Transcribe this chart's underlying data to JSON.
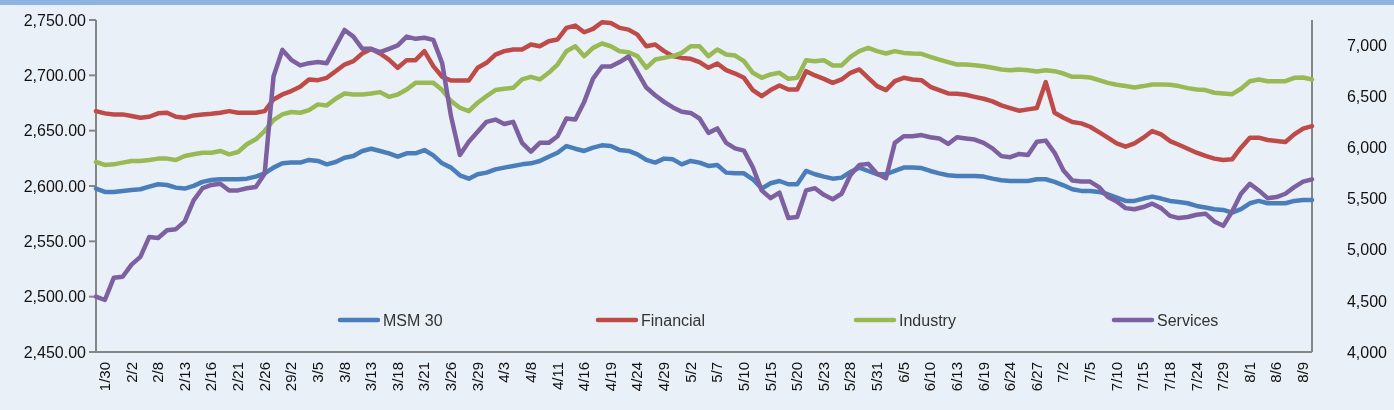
{
  "chart_data": {
    "type": "line",
    "categories": [
      null,
      "1/30",
      null,
      null,
      "2/2",
      null,
      null,
      "2/8",
      null,
      null,
      "2/13",
      null,
      null,
      "2/16",
      null,
      null,
      "2/21",
      null,
      null,
      "2/26",
      null,
      null,
      "29/2",
      null,
      null,
      "3/5",
      null,
      null,
      "3/8",
      null,
      null,
      "3/13",
      null,
      null,
      "3/18",
      null,
      null,
      "3/21",
      null,
      null,
      "3/26",
      null,
      null,
      "3/29",
      null,
      null,
      "4/3",
      null,
      null,
      "4/8",
      null,
      null,
      "4/11",
      null,
      null,
      "4/16",
      null,
      null,
      "4/19",
      null,
      null,
      "4/24",
      null,
      null,
      "4/29",
      null,
      null,
      "5/2",
      null,
      null,
      "5/7",
      null,
      null,
      "5/10",
      null,
      null,
      "5/15",
      null,
      null,
      "5/20",
      null,
      null,
      "5/23",
      null,
      null,
      "5/28",
      null,
      null,
      "5/31",
      null,
      null,
      "6/5",
      null,
      null,
      "6/10",
      null,
      null,
      "6/13",
      null,
      null,
      "6/19",
      null,
      null,
      "6/24",
      null,
      null,
      "6/27",
      null,
      null,
      "7/2",
      null,
      null,
      "7/5",
      null,
      null,
      "7/10",
      null,
      null,
      "7/15",
      null,
      null,
      "7/18",
      null,
      null,
      "7/24",
      null,
      null,
      "7/29",
      null,
      null,
      "8/1",
      null,
      null,
      "8/6",
      null,
      null,
      "8/9",
      null
    ],
    "series": [
      {
        "name": "MSM 30",
        "color": "#4a7ebb",
        "axis": "y2",
        "values": [
          5600,
          5567,
          5567,
          5577,
          5586,
          5593,
          5619,
          5642,
          5635,
          5609,
          5600,
          5626,
          5665,
          5684,
          5691,
          5691,
          5691,
          5697,
          5717,
          5749,
          5805,
          5847,
          5854,
          5854,
          5880,
          5870,
          5837,
          5860,
          5902,
          5919,
          5968,
          5990,
          5968,
          5945,
          5912,
          5945,
          5945,
          5977,
          5925,
          5847,
          5805,
          5730,
          5697,
          5740,
          5756,
          5788,
          5805,
          5821,
          5837,
          5847,
          5870,
          5912,
          5951,
          6016,
          5990,
          5968,
          6000,
          6023,
          6016,
          5977,
          5968,
          5935,
          5880,
          5854,
          5893,
          5886,
          5837,
          5870,
          5854,
          5821,
          5831,
          5756,
          5749,
          5749,
          5691,
          5600,
          5652,
          5674,
          5642,
          5642,
          5772,
          5740,
          5717,
          5697,
          5707,
          5762,
          5805,
          5772,
          5740,
          5740,
          5772,
          5805,
          5805,
          5801,
          5772,
          5749,
          5730,
          5723,
          5723,
          5723,
          5717,
          5697,
          5681,
          5674,
          5674,
          5674,
          5691,
          5691,
          5665,
          5632,
          5593,
          5577,
          5577,
          5567,
          5544,
          5512,
          5479,
          5479,
          5502,
          5521,
          5502,
          5479,
          5469,
          5456,
          5430,
          5414,
          5398,
          5391,
          5365,
          5398,
          5456,
          5479,
          5456,
          5456,
          5456,
          5479,
          5489,
          5489
        ]
      },
      {
        "name": "Financial",
        "color": "#be4b48",
        "axis": "y2",
        "values": [
          6358,
          6336,
          6326,
          6326,
          6310,
          6293,
          6303,
          6336,
          6342,
          6303,
          6293,
          6316,
          6326,
          6332,
          6342,
          6358,
          6342,
          6342,
          6342,
          6358,
          6472,
          6521,
          6554,
          6596,
          6668,
          6661,
          6684,
          6749,
          6814,
          6847,
          6922,
          6967,
          6922,
          6863,
          6782,
          6857,
          6857,
          6945,
          6798,
          6694,
          6658,
          6658,
          6658,
          6782,
          6831,
          6912,
          6945,
          6961,
          6961,
          7010,
          6993,
          7042,
          7059,
          7173,
          7195,
          7130,
          7163,
          7228,
          7221,
          7173,
          7156,
          7107,
          6993,
          7010,
          6945,
          6896,
          6879,
          6870,
          6837,
          6782,
          6824,
          6759,
          6726,
          6684,
          6564,
          6505,
          6564,
          6609,
          6570,
          6570,
          6749,
          6707,
          6674,
          6635,
          6668,
          6733,
          6766,
          6684,
          6603,
          6564,
          6652,
          6684,
          6668,
          6661,
          6596,
          6564,
          6531,
          6528,
          6518,
          6498,
          6479,
          6453,
          6414,
          6388,
          6362,
          6375,
          6388,
          6642,
          6342,
          6293,
          6251,
          6238,
          6205,
          6153,
          6098,
          6042,
          6010,
          6042,
          6098,
          6163,
          6130,
          6065,
          6029,
          5990,
          5951,
          5919,
          5893,
          5880,
          5886,
          6000,
          6098,
          6098,
          6075,
          6065,
          6055,
          6130,
          6186,
          6212
        ]
      },
      {
        "name": "Industry",
        "color": "#98b954",
        "axis": "y2",
        "values": [
          5860,
          5831,
          5837,
          5854,
          5870,
          5870,
          5880,
          5893,
          5893,
          5880,
          5919,
          5935,
          5951,
          5951,
          5968,
          5935,
          5958,
          6033,
          6082,
          6163,
          6270,
          6326,
          6349,
          6342,
          6368,
          6424,
          6414,
          6479,
          6531,
          6521,
          6521,
          6531,
          6544,
          6498,
          6521,
          6570,
          6635,
          6635,
          6635,
          6564,
          6456,
          6391,
          6358,
          6440,
          6505,
          6564,
          6577,
          6586,
          6668,
          6694,
          6668,
          6733,
          6814,
          6945,
          6993,
          6896,
          6977,
          7020,
          6993,
          6945,
          6935,
          6896,
          6782,
          6863,
          6879,
          6896,
          6928,
          6993,
          6993,
          6896,
          6961,
          6912,
          6902,
          6847,
          6733,
          6684,
          6717,
          6733,
          6674,
          6684,
          6857,
          6847,
          6857,
          6805,
          6805,
          6889,
          6945,
          6977,
          6945,
          6922,
          6945,
          6928,
          6922,
          6919,
          6889,
          6863,
          6837,
          6814,
          6814,
          6808,
          6798,
          6782,
          6765,
          6759,
          6765,
          6759,
          6746,
          6759,
          6749,
          6726,
          6694,
          6694,
          6687,
          6661,
          6635,
          6616,
          6603,
          6590,
          6603,
          6619,
          6619,
          6616,
          6603,
          6583,
          6570,
          6564,
          6538,
          6531,
          6524,
          6577,
          6651,
          6668,
          6651,
          6651,
          6651,
          6684,
          6687,
          6668
        ]
      },
      {
        "name": "Services",
        "color": "#7d60a0",
        "values": [
          2500,
          2497,
          2517,
          2518,
          2529,
          2536,
          2554,
          2553,
          2560,
          2561,
          2568,
          2587,
          2598,
          2601,
          2602,
          2596,
          2596,
          2598,
          2599,
          2611,
          2699,
          2723,
          2714,
          2709,
          2711,
          2712,
          2711,
          2726,
          2741,
          2735,
          2724,
          2724,
          2721,
          2724,
          2727,
          2735,
          2733,
          2734,
          2732,
          2711,
          2663,
          2628,
          2640,
          2649,
          2658,
          2660,
          2656,
          2658,
          2639,
          2631,
          2639,
          2639,
          2645,
          2661,
          2660,
          2676,
          2697,
          2708,
          2708,
          2712,
          2717,
          2703,
          2689,
          2682,
          2676,
          2671,
          2667,
          2666,
          2661,
          2648,
          2652,
          2639,
          2634,
          2632,
          2617,
          2596,
          2589,
          2594,
          2571,
          2572,
          2596,
          2598,
          2592,
          2588,
          2593,
          2610,
          2619,
          2620,
          2611,
          2607,
          2639,
          2645,
          2645,
          2646,
          2644,
          2643,
          2638,
          2644,
          2643,
          2642,
          2639,
          2634,
          2627,
          2626,
          2629,
          2628,
          2640,
          2641,
          2630,
          2614,
          2605,
          2604,
          2604,
          2599,
          2590,
          2586,
          2580,
          2579,
          2581,
          2584,
          2580,
          2573,
          2571,
          2572,
          2574,
          2575,
          2568,
          2564,
          2577,
          2593,
          2602,
          2596,
          2589,
          2590,
          2593,
          2599,
          2604,
          2606
        ]
      }
    ],
    "ylim": [
      2450,
      2750
    ],
    "yticks": [
      {
        "value": 2450,
        "label": "2,450.00"
      },
      {
        "value": 2500,
        "label": "2,500.00"
      },
      {
        "value": 2550,
        "label": "2,550.00"
      },
      {
        "value": 2600,
        "label": "2,600.00"
      },
      {
        "value": 2650,
        "label": "2,650.00"
      },
      {
        "value": 2700,
        "label": "2,700.00"
      },
      {
        "value": 2750,
        "label": "2,750.00"
      }
    ],
    "y2lim": [
      4000,
      7250
    ],
    "y2ticks": [
      {
        "value": 4000,
        "label": "4,000"
      },
      {
        "value": 4500,
        "label": "4,500"
      },
      {
        "value": 5000,
        "label": "5,000"
      },
      {
        "value": 5500,
        "label": "5,500"
      },
      {
        "value": 6000,
        "label": "6,000"
      },
      {
        "value": 6500,
        "label": "6,500"
      },
      {
        "value": 7000,
        "label": "7,000"
      }
    ],
    "legend": "bottom",
    "marker": "none",
    "line_style": "solid"
  }
}
